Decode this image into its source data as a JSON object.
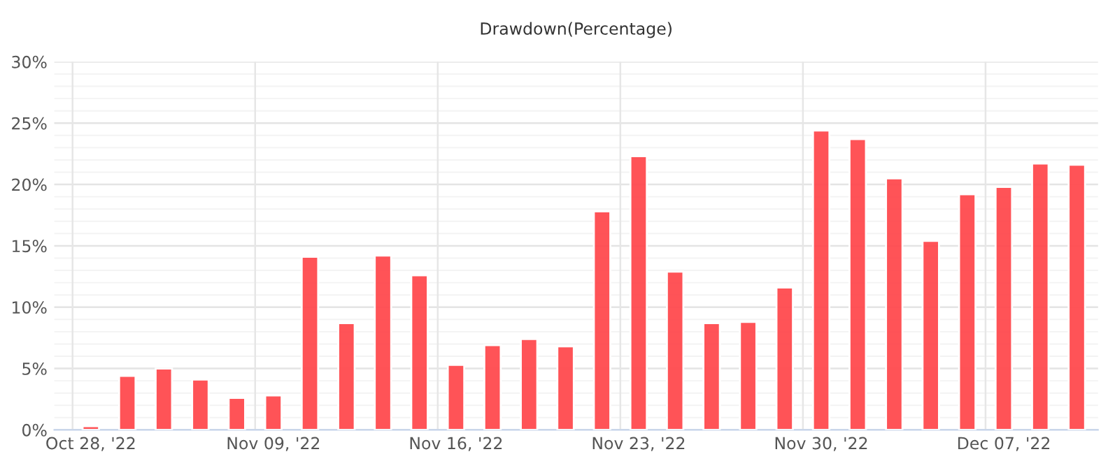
{
  "chart_data": {
    "type": "bar",
    "title": "Drawdown(Percentage)",
    "categories": [
      "Oct 28, '22",
      null,
      null,
      null,
      null,
      "Nov 09, '22",
      null,
      null,
      null,
      null,
      "Nov 16, '22",
      null,
      null,
      null,
      null,
      "Nov 23, '22",
      null,
      null,
      null,
      null,
      "Nov 30, '22",
      null,
      null,
      null,
      null,
      "Dec 07, '22",
      null,
      null
    ],
    "values": [
      0.3,
      4.4,
      5.0,
      4.1,
      2.6,
      2.8,
      14.1,
      8.7,
      14.2,
      12.6,
      5.3,
      6.9,
      7.4,
      6.8,
      17.8,
      22.3,
      12.9,
      8.7,
      8.8,
      11.6,
      24.4,
      23.7,
      20.5,
      15.4,
      19.2,
      19.8,
      21.7,
      21.6
    ],
    "color": "#ff4a4f",
    "ylim": [
      0,
      30
    ],
    "yticks": [
      {
        "value": 0,
        "label": "0%"
      },
      {
        "value": 5,
        "label": "5%"
      },
      {
        "value": 10,
        "label": "10%"
      },
      {
        "value": 15,
        "label": "15%"
      },
      {
        "value": 20,
        "label": "20%"
      },
      {
        "value": 25,
        "label": "25%"
      },
      {
        "value": 30,
        "label": "30%"
      }
    ],
    "grid": true
  }
}
